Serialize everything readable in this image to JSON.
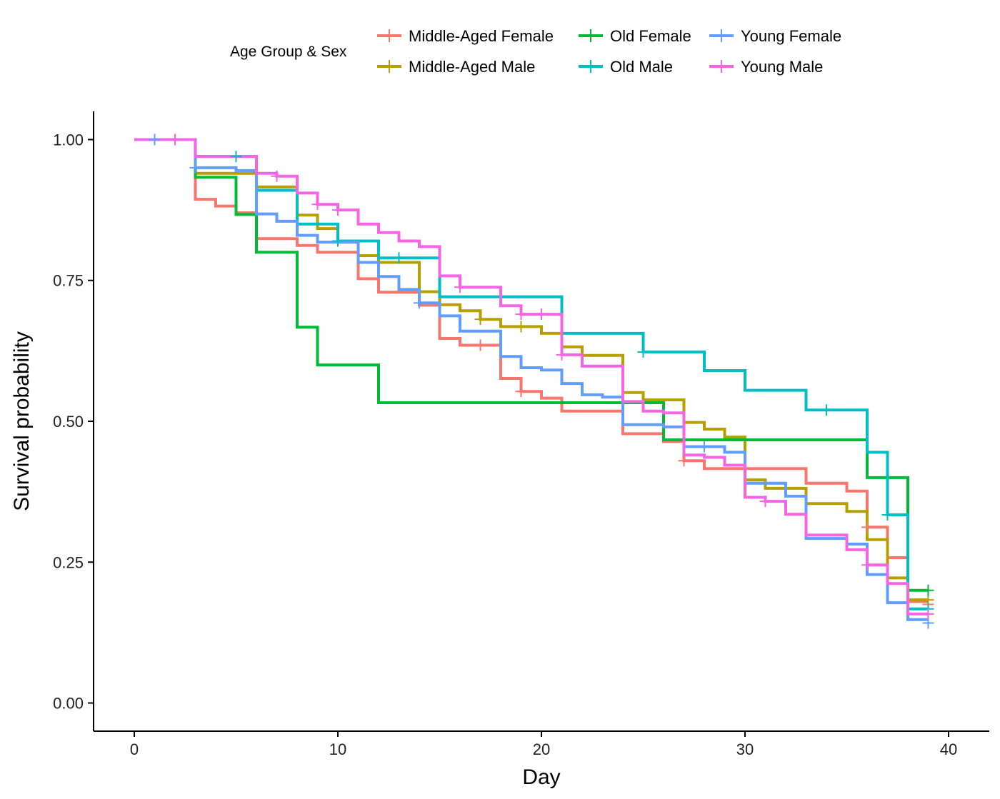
{
  "chart_data": {
    "type": "line",
    "subtype": "kaplan-meier step",
    "xlabel": "Day",
    "ylabel": "Survival probability",
    "xlim": [
      -2,
      42
    ],
    "ylim": [
      -0.05,
      1.05
    ],
    "xticks": [
      0,
      10,
      20,
      30,
      40
    ],
    "xtick_labels": [
      "0",
      "10",
      "20",
      "30",
      "40"
    ],
    "yticks": [
      0,
      0.25,
      0.5,
      0.75,
      1
    ],
    "ytick_labels": [
      "0.00",
      "0.25",
      "0.50",
      "0.75",
      "1.00"
    ],
    "grid": false,
    "legend": {
      "title": "Age Group & Sex",
      "position": "top"
    },
    "series": [
      {
        "name": "Middle-Aged Female",
        "color": "#F8766D",
        "points": [
          [
            0,
            1.0
          ],
          [
            3,
            0.894
          ],
          [
            4,
            0.882
          ],
          [
            5,
            0.87
          ],
          [
            6,
            0.824
          ],
          [
            8,
            0.812
          ],
          [
            9,
            0.8
          ],
          [
            11,
            0.753
          ],
          [
            12,
            0.729
          ],
          [
            14,
            0.706
          ],
          [
            15,
            0.647
          ],
          [
            16,
            0.635
          ],
          [
            18,
            0.576
          ],
          [
            19,
            0.553
          ],
          [
            20,
            0.541
          ],
          [
            21,
            0.518
          ],
          [
            24,
            0.478
          ],
          [
            26,
            0.464
          ],
          [
            27,
            0.43
          ],
          [
            28,
            0.416
          ],
          [
            30,
            0.416
          ],
          [
            33,
            0.39
          ],
          [
            35,
            0.376
          ],
          [
            36,
            0.312
          ],
          [
            37,
            0.258
          ],
          [
            38,
            0.18
          ],
          [
            39,
            0.18
          ]
        ],
        "censors": [
          [
            17,
            0.635
          ],
          [
            19,
            0.553
          ],
          [
            27,
            0.43
          ],
          [
            36,
            0.312
          ],
          [
            39,
            0.175
          ]
        ]
      },
      {
        "name": "Middle-Aged Male",
        "color": "#B79F00",
        "points": [
          [
            0,
            1.0
          ],
          [
            3,
            0.94
          ],
          [
            6,
            0.916
          ],
          [
            8,
            0.866
          ],
          [
            9,
            0.842
          ],
          [
            10,
            0.818
          ],
          [
            11,
            0.794
          ],
          [
            12,
            0.782
          ],
          [
            14,
            0.73
          ],
          [
            15,
            0.707
          ],
          [
            16,
            0.696
          ],
          [
            17,
            0.681
          ],
          [
            18,
            0.668
          ],
          [
            20,
            0.656
          ],
          [
            21,
            0.632
          ],
          [
            22,
            0.617
          ],
          [
            24,
            0.551
          ],
          [
            25,
            0.538
          ],
          [
            27,
            0.498
          ],
          [
            28,
            0.486
          ],
          [
            29,
            0.472
          ],
          [
            30,
            0.396
          ],
          [
            31,
            0.381
          ],
          [
            33,
            0.354
          ],
          [
            35,
            0.34
          ],
          [
            36,
            0.29
          ],
          [
            37,
            0.222
          ],
          [
            38,
            0.183
          ],
          [
            39,
            0.183
          ]
        ],
        "censors": [
          [
            17,
            0.681
          ],
          [
            19,
            0.668
          ],
          [
            39,
            0.183
          ]
        ]
      },
      {
        "name": "Old Female",
        "color": "#00BA38",
        "points": [
          [
            0,
            1.0
          ],
          [
            3,
            0.933
          ],
          [
            5,
            0.867
          ],
          [
            6,
            0.8
          ],
          [
            8,
            0.667
          ],
          [
            9,
            0.6
          ],
          [
            12,
            0.533
          ],
          [
            26,
            0.467
          ],
          [
            36,
            0.4
          ],
          [
            38,
            0.2
          ],
          [
            39,
            0.2
          ]
        ],
        "censors": [
          [
            39,
            0.2
          ]
        ]
      },
      {
        "name": "Old Male",
        "color": "#00BFC4",
        "points": [
          [
            0,
            1.0
          ],
          [
            3,
            0.97
          ],
          [
            6,
            0.91
          ],
          [
            8,
            0.85
          ],
          [
            10,
            0.82
          ],
          [
            12,
            0.79
          ],
          [
            15,
            0.721
          ],
          [
            21,
            0.656
          ],
          [
            25,
            0.623
          ],
          [
            28,
            0.59
          ],
          [
            30,
            0.555
          ],
          [
            33,
            0.52
          ],
          [
            36,
            0.445
          ],
          [
            37,
            0.334
          ],
          [
            38,
            0.167
          ],
          [
            39,
            0.167
          ]
        ],
        "censors": [
          [
            5,
            0.97
          ],
          [
            10,
            0.82
          ],
          [
            13,
            0.79
          ],
          [
            25,
            0.623
          ],
          [
            34,
            0.52
          ],
          [
            37,
            0.334
          ],
          [
            39,
            0.167
          ]
        ]
      },
      {
        "name": "Young Female",
        "color": "#619CFF",
        "points": [
          [
            0,
            1.0
          ],
          [
            3,
            0.95
          ],
          [
            5,
            0.945
          ],
          [
            6,
            0.868
          ],
          [
            7,
            0.855
          ],
          [
            8,
            0.83
          ],
          [
            9,
            0.818
          ],
          [
            11,
            0.782
          ],
          [
            12,
            0.757
          ],
          [
            13,
            0.734
          ],
          [
            14,
            0.71
          ],
          [
            15,
            0.687
          ],
          [
            16,
            0.66
          ],
          [
            18,
            0.615
          ],
          [
            19,
            0.595
          ],
          [
            20,
            0.591
          ],
          [
            21,
            0.567
          ],
          [
            22,
            0.547
          ],
          [
            23,
            0.543
          ],
          [
            24,
            0.494
          ],
          [
            26,
            0.49
          ],
          [
            27,
            0.455
          ],
          [
            29,
            0.445
          ],
          [
            30,
            0.39
          ],
          [
            32,
            0.367
          ],
          [
            33,
            0.292
          ],
          [
            35,
            0.282
          ],
          [
            36,
            0.228
          ],
          [
            37,
            0.178
          ],
          [
            38,
            0.148
          ],
          [
            39,
            0.148
          ]
        ],
        "censors": [
          [
            1,
            1.0
          ],
          [
            3,
            0.95
          ],
          [
            14,
            0.71
          ],
          [
            28,
            0.455
          ],
          [
            39,
            0.142
          ]
        ]
      },
      {
        "name": "Young Male",
        "color": "#F564E3",
        "points": [
          [
            0,
            1.0
          ],
          [
            3,
            0.97
          ],
          [
            6,
            0.94
          ],
          [
            7,
            0.935
          ],
          [
            8,
            0.905
          ],
          [
            9,
            0.885
          ],
          [
            10,
            0.875
          ],
          [
            11,
            0.85
          ],
          [
            12,
            0.835
          ],
          [
            13,
            0.82
          ],
          [
            14,
            0.81
          ],
          [
            15,
            0.758
          ],
          [
            16,
            0.738
          ],
          [
            18,
            0.705
          ],
          [
            19,
            0.69
          ],
          [
            21,
            0.618
          ],
          [
            22,
            0.598
          ],
          [
            24,
            0.535
          ],
          [
            25,
            0.518
          ],
          [
            26,
            0.515
          ],
          [
            27,
            0.44
          ],
          [
            28,
            0.436
          ],
          [
            29,
            0.422
          ],
          [
            30,
            0.365
          ],
          [
            31,
            0.358
          ],
          [
            32,
            0.335
          ],
          [
            33,
            0.298
          ],
          [
            35,
            0.272
          ],
          [
            36,
            0.245
          ],
          [
            37,
            0.212
          ],
          [
            38,
            0.158
          ],
          [
            39,
            0.158
          ]
        ],
        "censors": [
          [
            2,
            1.0
          ],
          [
            7,
            0.935
          ],
          [
            9,
            0.885
          ],
          [
            10,
            0.875
          ],
          [
            16,
            0.738
          ],
          [
            19,
            0.69
          ],
          [
            20,
            0.69
          ],
          [
            21,
            0.618
          ],
          [
            31,
            0.358
          ],
          [
            36,
            0.245
          ],
          [
            39,
            0.158
          ]
        ]
      }
    ]
  }
}
